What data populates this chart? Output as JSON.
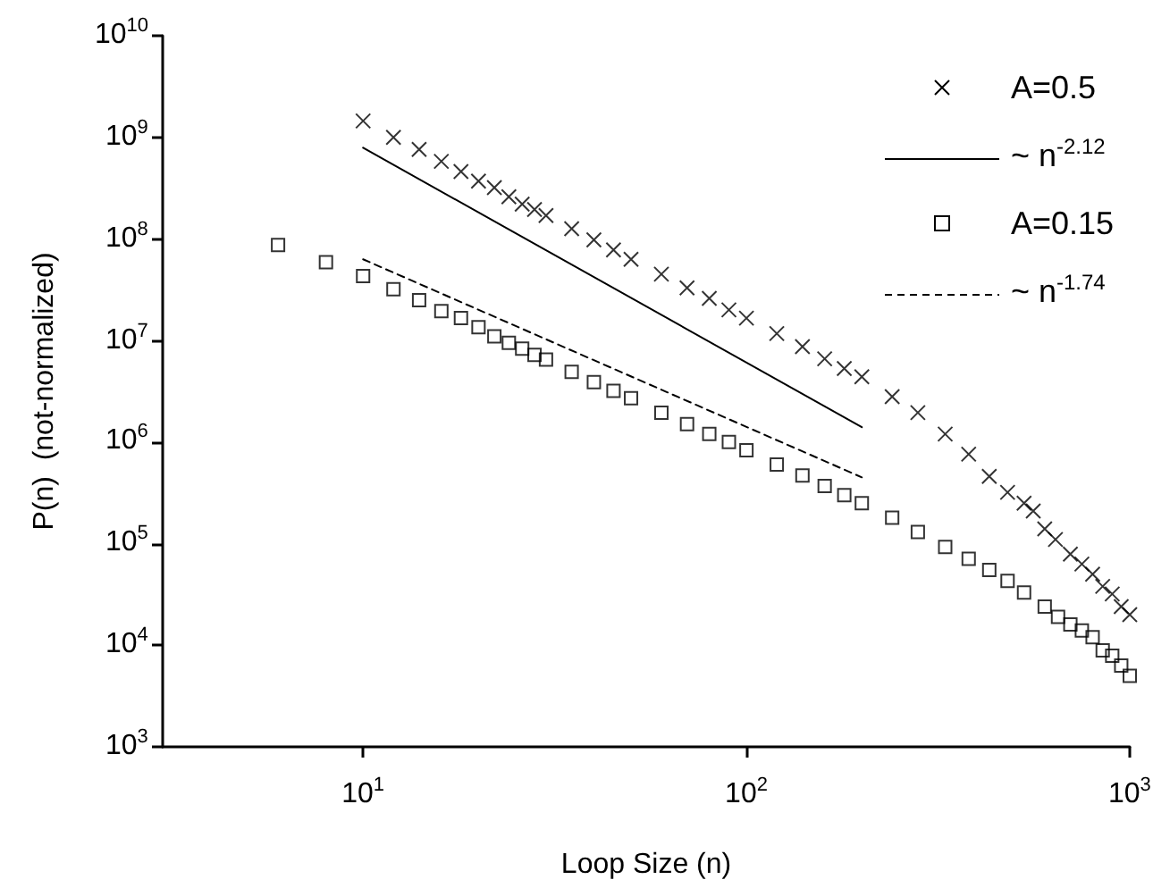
{
  "chart_data": {
    "type": "scatter",
    "xlabel": "Loop Size (n)",
    "ylabel": "P(n)  (not-normalized)",
    "log": "xy",
    "grid": false,
    "legend": "top right",
    "xlim": [
      3,
      1000
    ],
    "xticks": [
      {
        "value": 10,
        "label": "10$^{1}$"
      },
      {
        "value": 100,
        "label": "10$^{2}$"
      },
      {
        "value": 1000,
        "label": "10$^{3}$"
      }
    ],
    "ylim": [
      1000,
      10000000000
    ],
    "yticks": [
      {
        "value": 1000,
        "label": "10$^{3}$"
      },
      {
        "value": 10000,
        "label": "10$^{4}$"
      },
      {
        "value": 100000,
        "label": "10$^{5}$"
      },
      {
        "value": 1000000,
        "label": "10$^{6}$"
      },
      {
        "value": 10000000,
        "label": "10$^{7}$"
      },
      {
        "value": 100000000,
        "label": "10$^{8}$"
      },
      {
        "value": 1000000000,
        "label": "10$^{9}$"
      },
      {
        "value": 10000000000,
        "label": "10$^{10}$"
      }
    ],
    "series": [
      {
        "name": "A=0.5",
        "marker": "cross",
        "color": "#000000",
        "x": [
          10,
          12,
          14,
          16,
          18,
          20,
          22,
          24,
          26,
          28,
          30,
          35,
          40,
          45,
          50,
          60,
          70,
          80,
          90,
          100,
          120,
          140,
          160,
          180,
          200,
          240,
          280,
          330,
          380,
          430,
          480,
          530,
          560,
          600,
          640,
          700,
          750,
          800,
          850,
          900,
          950,
          1000
        ],
        "values": [
          1450000000,
          1000000000,
          760000000,
          580000000,
          460000000,
          370000000,
          320000000,
          260000000,
          220000000,
          195000000,
          170000000,
          126000000,
          98000000,
          78000000,
          63000000,
          45000000,
          33000000,
          26000000,
          20000000,
          16600000,
          11700000,
          8700000,
          6600000,
          5300000,
          4400000,
          2800000,
          1950000,
          1200000,
          760000,
          460000,
          320000,
          250000,
          210000,
          140000,
          110000,
          79000,
          63000,
          50000,
          38000,
          32000,
          24000,
          20000
        ]
      },
      {
        "name": "~ n$^{-2.12}$",
        "type": "line",
        "marker": "none",
        "line_style": "solid",
        "color": "#000000",
        "x": [
          10,
          200
        ],
        "values": [
          790000000,
          1400000
        ]
      },
      {
        "name": "A=0.15",
        "marker": "square",
        "color": "#000000",
        "x": [
          6,
          8,
          10,
          12,
          14,
          16,
          18,
          20,
          22,
          24,
          26,
          28,
          30,
          35,
          40,
          45,
          50,
          60,
          70,
          80,
          90,
          100,
          120,
          140,
          160,
          180,
          200,
          240,
          280,
          330,
          380,
          430,
          480,
          530,
          600,
          650,
          700,
          750,
          800,
          850,
          900,
          950,
          1000
        ],
        "values": [
          87000000,
          59000000,
          43000000,
          32000000,
          25000000,
          19500000,
          16600000,
          13500000,
          11000000,
          9500000,
          8300000,
          7200000,
          6500000,
          4900000,
          3900000,
          3200000,
          2700000,
          1950000,
          1500000,
          1200000,
          1000000,
          830000,
          600000,
          470000,
          370000,
          300000,
          250000,
          180000,
          130000,
          93000,
          71000,
          55000,
          43000,
          33000,
          24000,
          19000,
          16000,
          14000,
          12000,
          8900,
          7900,
          6300,
          5000
        ]
      },
      {
        "name": "~ n$^{-1.74}$",
        "type": "line",
        "marker": "none",
        "line_style": "dashed",
        "color": "#000000",
        "x": [
          10,
          200
        ],
        "values": [
          63000000,
          450000
        ]
      }
    ]
  }
}
